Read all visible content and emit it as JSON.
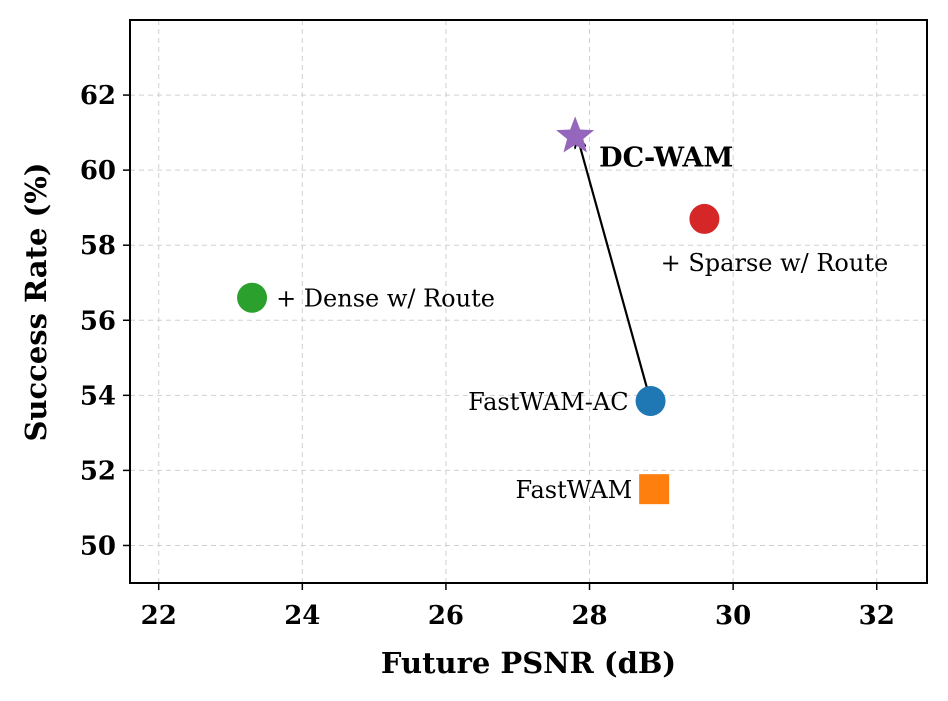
{
  "chart_data": {
    "type": "scatter",
    "title": "",
    "xlabel": "Future PSNR (dB)",
    "ylabel": "Success Rate (%)",
    "xlim": [
      21.6,
      32.7
    ],
    "ylim": [
      49.0,
      64.0
    ],
    "xticks": [
      22,
      24,
      26,
      28,
      30,
      32
    ],
    "yticks": [
      50,
      52,
      54,
      56,
      58,
      60,
      62
    ],
    "grid": true,
    "points": [
      {
        "label": "FastWAM",
        "x": 28.9,
        "y": 51.5,
        "color": "#ff7f0e",
        "marker": "square",
        "label_position": "left"
      },
      {
        "label": "FastWAM-AC",
        "x": 28.85,
        "y": 53.85,
        "color": "#1f77b4",
        "marker": "circle",
        "label_position": "left"
      },
      {
        "label": "+ Dense w/ Route",
        "x": 23.3,
        "y": 56.6,
        "color": "#2ca02c",
        "marker": "circle",
        "label_position": "right"
      },
      {
        "label": "+ Sparse w/ Route",
        "x": 29.6,
        "y": 58.7,
        "color": "#d62728",
        "marker": "circle",
        "label_position": "below"
      },
      {
        "label": "DC-WAM",
        "x": 27.8,
        "y": 60.9,
        "color": "#9467bd",
        "marker": "star",
        "label_position": "right",
        "bold": true
      }
    ],
    "arrow": {
      "from": [
        28.85,
        53.85
      ],
      "to": [
        27.85,
        60.75
      ],
      "color": "#000000"
    }
  }
}
